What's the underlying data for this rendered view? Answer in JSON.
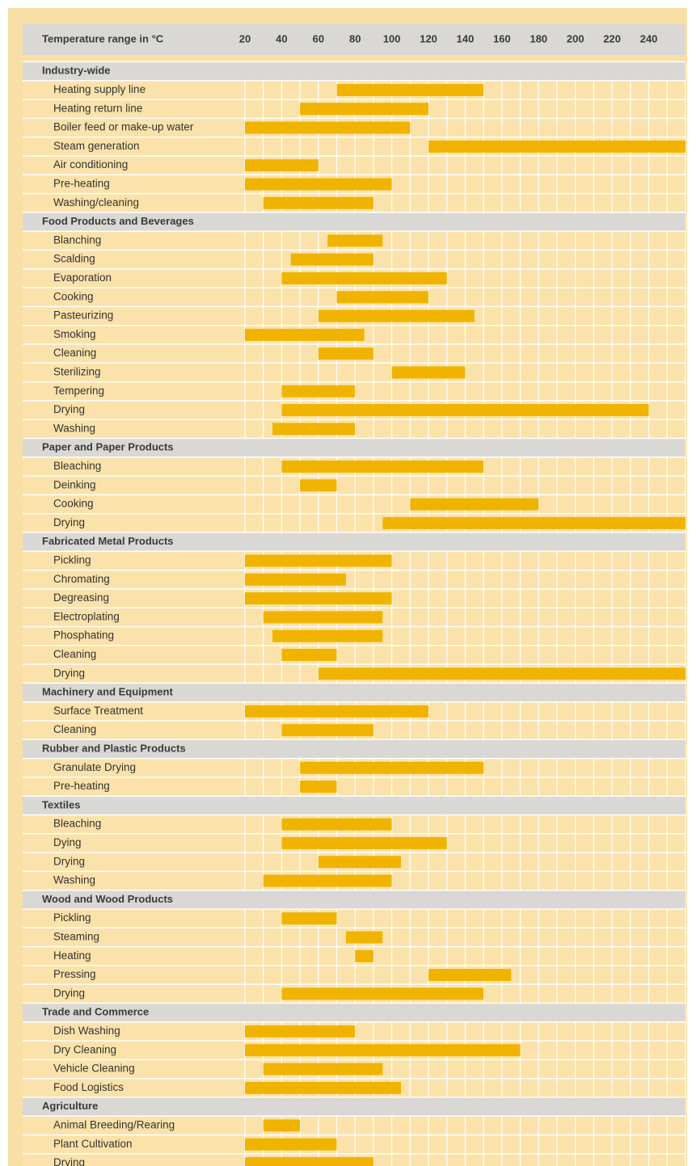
{
  "chart_data": {
    "type": "bar",
    "x_label": "Temperature range in °C",
    "xlim": [
      20,
      260
    ],
    "xticks": [
      20,
      40,
      60,
      80,
      100,
      120,
      140,
      160,
      180,
      200,
      220,
      240
    ],
    "minor_xticks": [
      30,
      50,
      70,
      90,
      110,
      130,
      150,
      170,
      190,
      210,
      230,
      250,
      260
    ],
    "grid": true,
    "color": "#f0b400",
    "groups": [
      {
        "name": "Industry-wide",
        "rows": [
          {
            "label": "Heating supply line",
            "values": [
              70,
              150
            ]
          },
          {
            "label": "Heating return line",
            "values": [
              50,
              120
            ]
          },
          {
            "label": "Boiler feed or make-up water",
            "values": [
              20,
              110
            ]
          },
          {
            "label": "Steam generation",
            "values": [
              120,
              260
            ]
          },
          {
            "label": "Air conditioning",
            "values": [
              20,
              60
            ]
          },
          {
            "label": "Pre-heating",
            "values": [
              20,
              100
            ]
          },
          {
            "label": "Washing/cleaning",
            "values": [
              30,
              90
            ]
          }
        ]
      },
      {
        "name": "Food Products and Beverages",
        "rows": [
          {
            "label": "Blanching",
            "values": [
              65,
              95
            ]
          },
          {
            "label": "Scalding",
            "values": [
              45,
              90
            ]
          },
          {
            "label": "Evaporation",
            "values": [
              40,
              130
            ]
          },
          {
            "label": "Cooking",
            "values": [
              70,
              120
            ]
          },
          {
            "label": "Pasteurizing",
            "values": [
              60,
              145
            ]
          },
          {
            "label": "Smoking",
            "values": [
              20,
              85
            ]
          },
          {
            "label": "Cleaning",
            "values": [
              60,
              90
            ]
          },
          {
            "label": "Sterilizing",
            "values": [
              100,
              140
            ]
          },
          {
            "label": "Tempering",
            "values": [
              40,
              80
            ]
          },
          {
            "label": "Drying",
            "values": [
              40,
              240
            ]
          },
          {
            "label": "Washing",
            "values": [
              35,
              80
            ]
          }
        ]
      },
      {
        "name": "Paper and Paper Products",
        "rows": [
          {
            "label": "Bleaching",
            "values": [
              40,
              150
            ]
          },
          {
            "label": "Deinking",
            "values": [
              50,
              70
            ]
          },
          {
            "label": "Cooking",
            "values": [
              110,
              180
            ]
          },
          {
            "label": "Drying",
            "values": [
              95,
              260
            ]
          }
        ]
      },
      {
        "name": "Fabricated Metal Products",
        "rows": [
          {
            "label": "Pickling",
            "values": [
              20,
              100
            ]
          },
          {
            "label": "Chromating",
            "values": [
              20,
              75
            ]
          },
          {
            "label": "Degreasing",
            "values": [
              20,
              100
            ]
          },
          {
            "label": "Electroplating",
            "values": [
              30,
              95
            ]
          },
          {
            "label": "Phosphating",
            "values": [
              35,
              95
            ]
          },
          {
            "label": "Cleaning",
            "values": [
              40,
              70
            ]
          },
          {
            "label": "Drying",
            "values": [
              60,
              260
            ]
          }
        ]
      },
      {
        "name": "Machinery and Equipment",
        "rows": [
          {
            "label": "Surface Treatment",
            "values": [
              20,
              120
            ]
          },
          {
            "label": "Cleaning",
            "values": [
              40,
              90
            ]
          }
        ]
      },
      {
        "name": "Rubber and Plastic Products",
        "rows": [
          {
            "label": "Granulate Drying",
            "values": [
              50,
              150
            ]
          },
          {
            "label": "Pre-heating",
            "values": [
              50,
              70
            ]
          }
        ]
      },
      {
        "name": "Textiles",
        "rows": [
          {
            "label": "Bleaching",
            "values": [
              40,
              100
            ]
          },
          {
            "label": "Dying",
            "values": [
              40,
              130
            ]
          },
          {
            "label": "Drying",
            "values": [
              60,
              105
            ]
          },
          {
            "label": "Washing",
            "values": [
              30,
              100
            ]
          }
        ]
      },
      {
        "name": "Wood and Wood Products",
        "rows": [
          {
            "label": "Pickling",
            "values": [
              40,
              70
            ]
          },
          {
            "label": "Steaming",
            "values": [
              75,
              95
            ]
          },
          {
            "label": "Heating",
            "values": [
              80,
              90
            ]
          },
          {
            "label": "Pressing",
            "values": [
              120,
              165
            ]
          },
          {
            "label": "Drying",
            "values": [
              40,
              150
            ]
          }
        ]
      },
      {
        "name": "Trade and Commerce",
        "rows": [
          {
            "label": "Dish Washing",
            "values": [
              20,
              80
            ]
          },
          {
            "label": "Dry Cleaning",
            "values": [
              20,
              170
            ]
          },
          {
            "label": "Vehicle Cleaning",
            "values": [
              30,
              95
            ]
          },
          {
            "label": "Food Logistics",
            "values": [
              20,
              105
            ]
          }
        ]
      },
      {
        "name": "Agriculture",
        "rows": [
          {
            "label": "Animal Breeding/Rearing",
            "values": [
              30,
              50
            ]
          },
          {
            "label": "Plant Cultivation",
            "values": [
              20,
              70
            ]
          },
          {
            "label": "Drying",
            "values": [
              20,
              90
            ]
          }
        ]
      }
    ]
  }
}
